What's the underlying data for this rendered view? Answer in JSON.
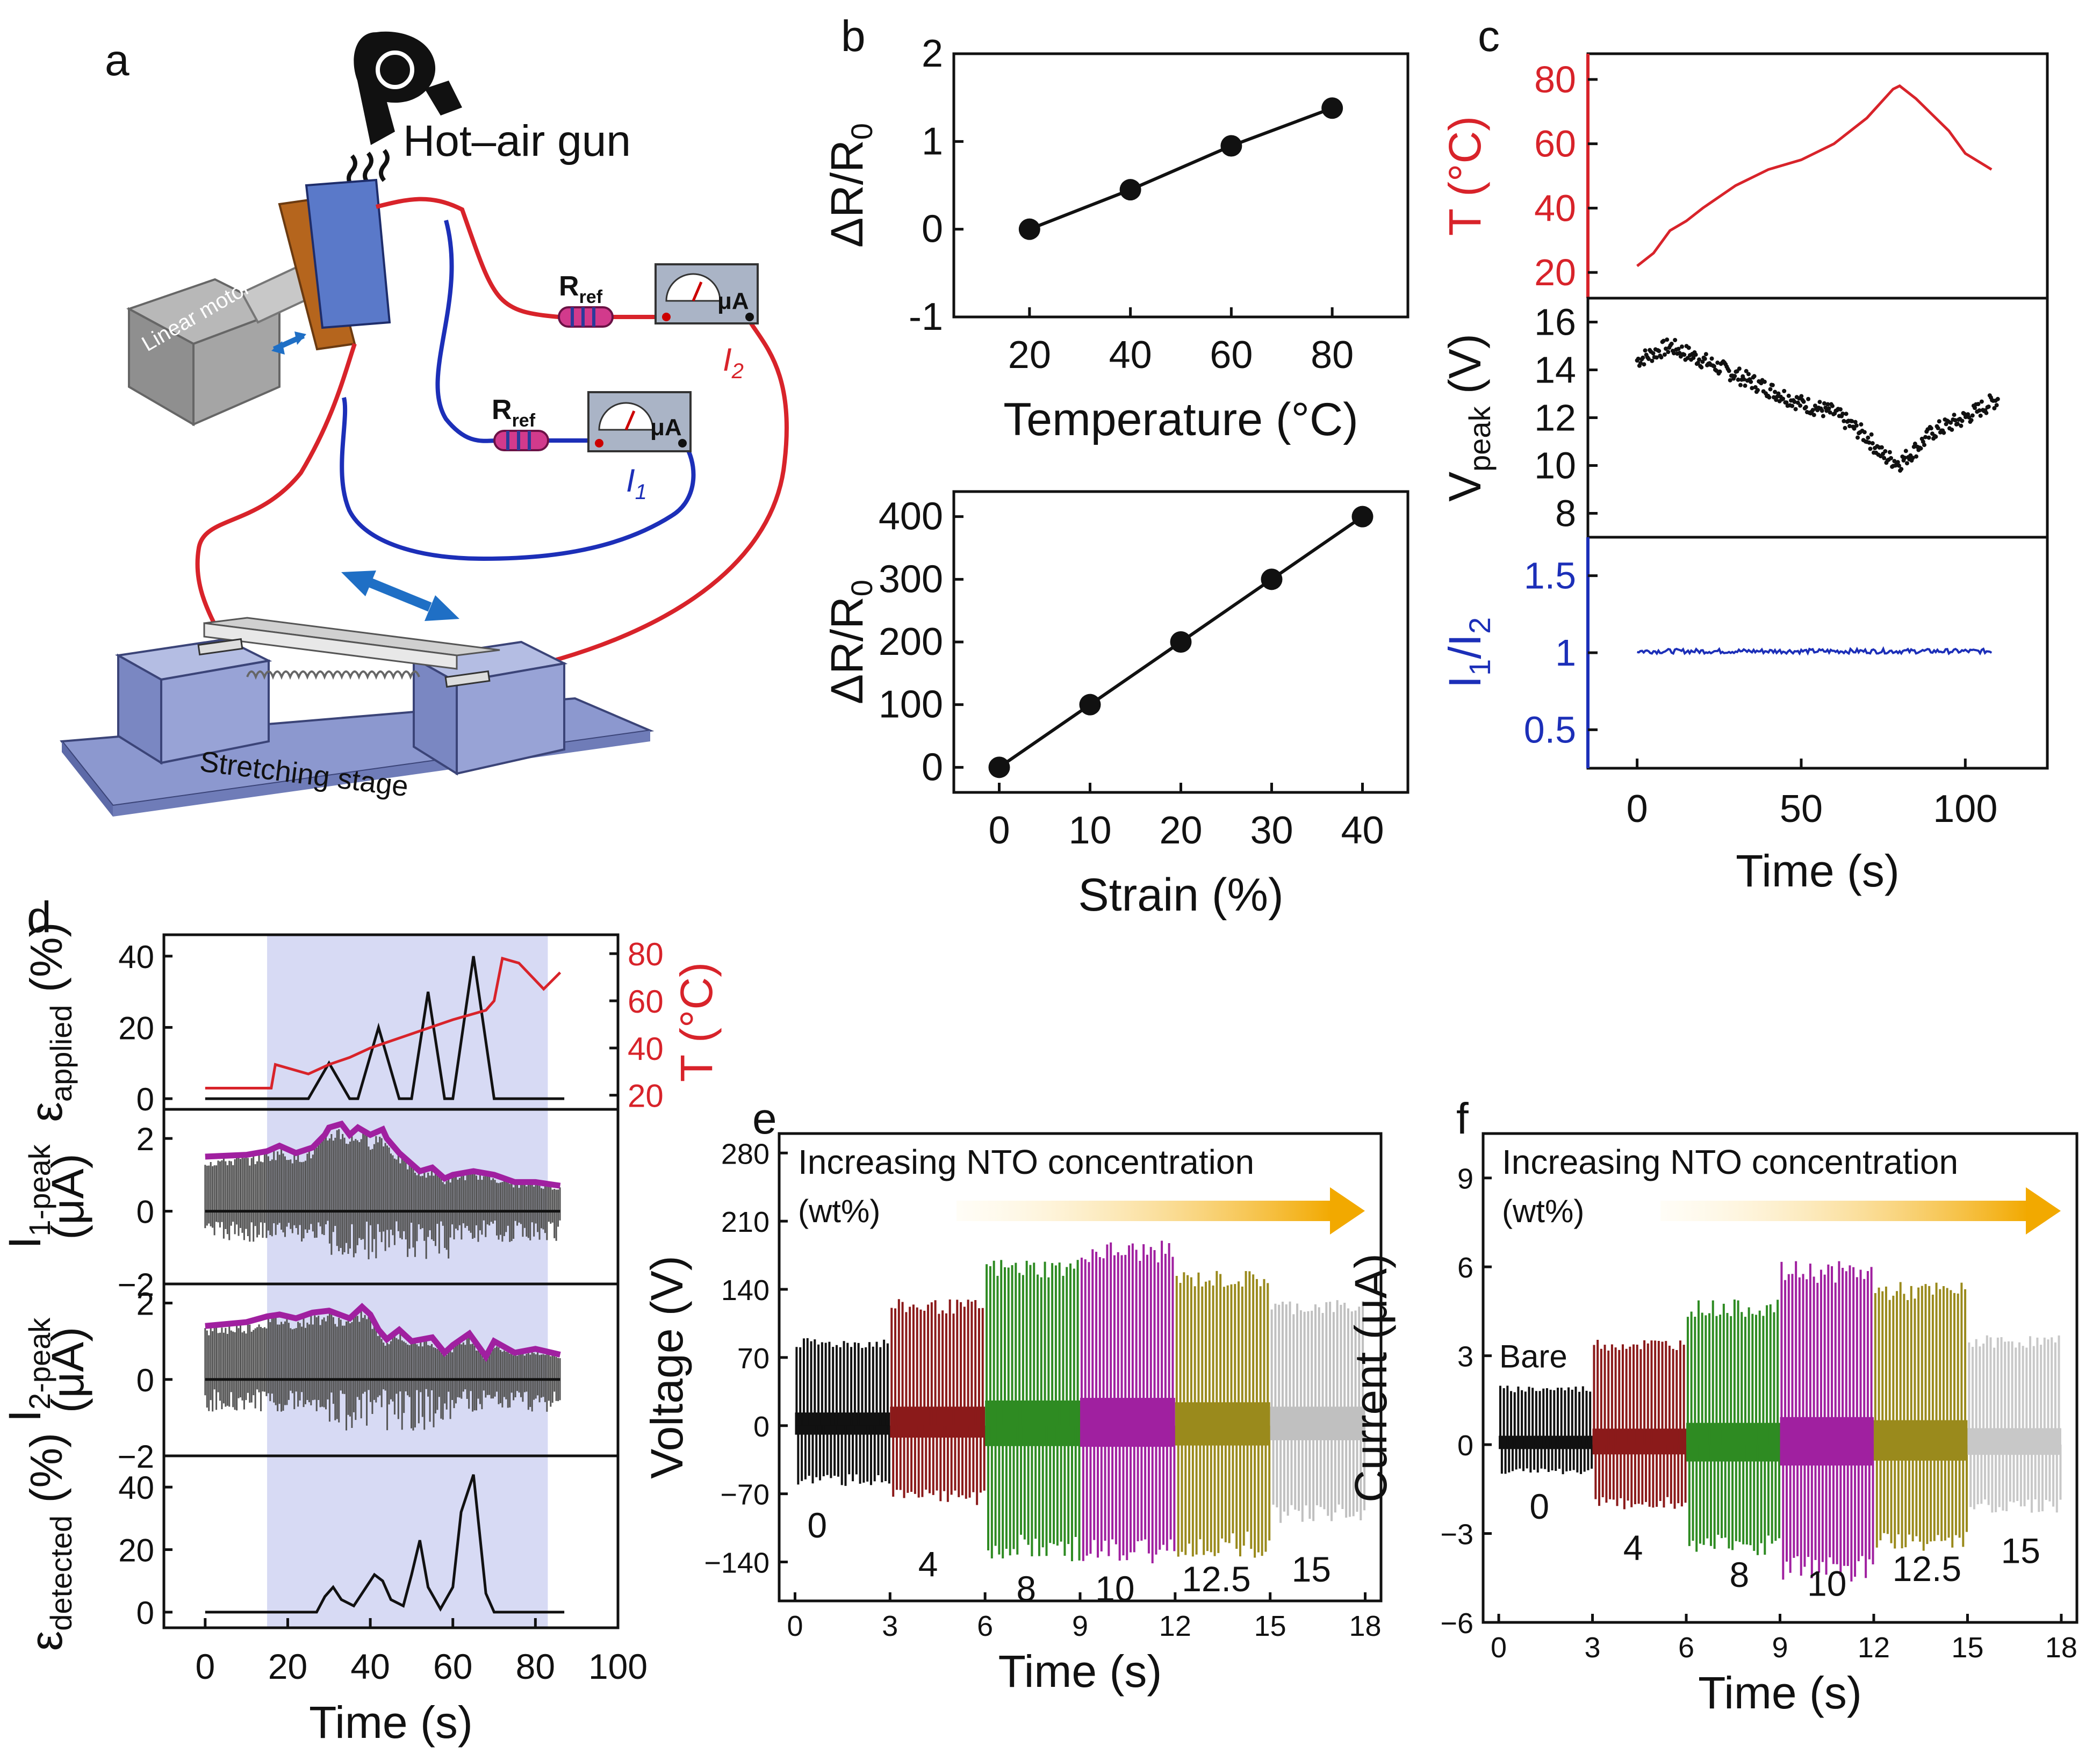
{
  "figure": {
    "panel_letters": [
      "a",
      "b",
      "c",
      "d",
      "e",
      "f"
    ]
  },
  "schematic": {
    "hot_air_gun_label": "Hot–air gun",
    "linear_motor_label": "Linear motor",
    "stage_label": "Stretching stage",
    "rref_label": "R",
    "rref_sub": "ref",
    "meter_label": "μA",
    "i1_label": "I",
    "i1_sub": "1",
    "i2_label": "I",
    "i2_sub": "2",
    "colors": {
      "red_wire": "#d8232a",
      "blue_wire": "#1c2fb8",
      "stage": "#8c98cf",
      "electrode": "#b5651d"
    }
  },
  "chart_data": [
    {
      "id": "b_top",
      "type": "line",
      "markers": true,
      "x": [
        20,
        40,
        60,
        80
      ],
      "y": [
        0.0,
        0.45,
        0.95,
        1.38
      ],
      "xlim": [
        5,
        95
      ],
      "ylim": [
        -1,
        2
      ],
      "xticks": [
        20,
        40,
        60,
        80
      ],
      "yticks": [
        -1,
        0,
        1,
        2
      ],
      "xlabel": "Temperature (°C)",
      "ylabel": "ΔR/R",
      "ylabel_sub": "0"
    },
    {
      "id": "b_bottom",
      "type": "line",
      "markers": true,
      "x": [
        0,
        10,
        20,
        30,
        40
      ],
      "y": [
        0,
        100,
        200,
        300,
        400
      ],
      "xlim": [
        -5,
        45
      ],
      "ylim": [
        -40,
        440
      ],
      "xticks": [
        0,
        10,
        20,
        30,
        40
      ],
      "yticks": [
        0,
        100,
        200,
        300,
        400
      ],
      "xlabel": "Strain (%)",
      "ylabel": "ΔR/R",
      "ylabel_sub": "0"
    },
    {
      "id": "c",
      "type": "line",
      "xlim": [
        -15,
        125
      ],
      "xticks": [
        0,
        50,
        100
      ],
      "xlabel": "Time (s)",
      "subplots": [
        {
          "name": "T",
          "ylabel": "T (°C)",
          "color": "#d8232a",
          "ylim": [
            12,
            88
          ],
          "yticks": [
            20,
            40,
            60,
            80
          ],
          "x": [
            0,
            5,
            10,
            15,
            20,
            30,
            40,
            50,
            60,
            70,
            78,
            80,
            85,
            90,
            95,
            100,
            108
          ],
          "y": [
            22,
            26,
            33,
            36,
            40,
            47,
            52,
            55,
            60,
            68,
            77,
            78,
            74,
            69,
            64,
            57,
            52
          ]
        },
        {
          "name": "Vpeak",
          "ylabel": "V",
          "ylabel_sub": "peak",
          "ylabel_unit": " (V)",
          "color": "#111111",
          "scatter": true,
          "ylim": [
            7,
            17
          ],
          "yticks": [
            8,
            10,
            12,
            14,
            16
          ],
          "x": [
            0,
            10,
            20,
            30,
            40,
            50,
            60,
            70,
            75,
            80,
            85,
            90,
            100,
            110
          ],
          "y": [
            14.4,
            15.0,
            14.4,
            13.8,
            13.2,
            12.6,
            12.2,
            11.2,
            10.4,
            10.1,
            10.7,
            11.4,
            12.0,
            12.8
          ]
        },
        {
          "name": "I1/I2",
          "ylabel": "I",
          "ylabel_sub1": "1",
          "ylabel_mid": "/I",
          "ylabel_sub2": "2",
          "color": "#1c2fb8",
          "ylim": [
            0.25,
            1.75
          ],
          "yticks": [
            0.5,
            1,
            1.5
          ],
          "yticklabels": [
            "0.5",
            "1",
            "1.5"
          ],
          "x": [
            0,
            108
          ],
          "y": [
            1.01,
            1.01
          ]
        }
      ]
    },
    {
      "id": "d",
      "type": "line",
      "xlim": [
        -10,
        100
      ],
      "xticks": [
        0,
        20,
        40,
        60,
        80,
        100
      ],
      "xlabel": "Time (s)",
      "shade_x": [
        15,
        83
      ],
      "subplots": [
        {
          "name": "strain_applied",
          "ylabel": "ε",
          "ylabel_sub": "applied",
          "ylabel_unit": " (%)",
          "ylim": [
            -3,
            46
          ],
          "yticks": [
            0,
            20,
            40
          ],
          "x": [
            0,
            25,
            30,
            35,
            37,
            42,
            47,
            50,
            54,
            58,
            60,
            65,
            70,
            87
          ],
          "y": [
            0,
            0,
            10,
            0,
            0,
            20,
            0,
            0,
            30,
            0,
            0,
            40,
            0,
            0
          ],
          "right_axis": {
            "ylabel": "T (°C)",
            "color": "#d8232a",
            "ylim": [
              14,
              88
            ],
            "yticks": [
              20,
              40,
              60,
              80
            ],
            "x": [
              0,
              16,
              17,
              25,
              30,
              35,
              40,
              45,
              50,
              55,
              60,
              68,
              70,
              72,
              76,
              82,
              86
            ],
            "y": [
              23,
              23,
              33,
              29,
              33,
              36,
              40,
              43,
              46,
              49,
              52,
              56,
              60,
              78,
              76,
              65,
              72
            ]
          }
        },
        {
          "name": "I1peak",
          "ylabel": "I",
          "ylabel_sub": "1-peak",
          "ylabel_line2": "(μA)",
          "ylim": [
            -2,
            2.8
          ],
          "yticks": [
            -2,
            0,
            2
          ],
          "envelope_color": "#a020a0",
          "envelope_x": [
            0,
            10,
            15,
            18,
            22,
            26,
            29,
            30,
            33,
            35,
            37,
            40,
            43,
            44,
            47,
            49,
            52,
            55,
            58,
            60,
            65,
            70,
            75,
            80,
            86
          ],
          "envelope_y": [
            1.5,
            1.55,
            1.65,
            1.8,
            1.6,
            1.75,
            2.1,
            2.3,
            2.4,
            2.1,
            2.3,
            2.1,
            2.25,
            2.0,
            1.6,
            1.4,
            1.1,
            1.2,
            0.9,
            1.0,
            1.1,
            1.0,
            0.8,
            0.8,
            0.7
          ]
        },
        {
          "name": "I2peak",
          "ylabel": "I",
          "ylabel_sub": "2-peak",
          "ylabel_line2": "(μA)",
          "ylim": [
            -2,
            2.5
          ],
          "yticks": [
            -2,
            0,
            2
          ],
          "envelope_color": "#a020a0",
          "envelope_x": [
            0,
            10,
            15,
            18,
            22,
            26,
            30,
            35,
            38,
            40,
            42,
            44,
            47,
            50,
            55,
            58,
            60,
            64,
            68,
            70,
            75,
            80,
            86
          ],
          "envelope_y": [
            1.4,
            1.5,
            1.65,
            1.7,
            1.6,
            1.75,
            1.8,
            1.6,
            1.9,
            1.7,
            1.3,
            1.05,
            1.3,
            1.0,
            1.1,
            0.7,
            0.9,
            1.2,
            0.6,
            1.0,
            0.7,
            0.8,
            0.65
          ]
        },
        {
          "name": "strain_detected",
          "ylabel": "ε",
          "ylabel_sub": "detected",
          "ylabel_unit": " (%)",
          "ylim": [
            -5,
            50
          ],
          "yticks": [
            0,
            20,
            40
          ],
          "x": [
            0,
            27,
            29,
            31,
            33,
            36,
            38,
            41,
            43,
            45,
            48,
            50,
            52,
            54,
            57,
            60,
            62,
            65,
            68,
            70,
            87
          ],
          "y": [
            0,
            0,
            5,
            8,
            4,
            2,
            6,
            12,
            10,
            4,
            2,
            12,
            23,
            8,
            1,
            8,
            32,
            44,
            6,
            0,
            0
          ]
        }
      ]
    },
    {
      "id": "e",
      "type": "line",
      "xlim": [
        -0.5,
        18.5
      ],
      "xticks": [
        0,
        3,
        6,
        9,
        12,
        15,
        18
      ],
      "xlabel": "Time (s)",
      "ylim": [
        -180,
        300
      ],
      "yticks": [
        -140,
        -70,
        0,
        70,
        140,
        210,
        280
      ],
      "yticklabels": [
        "−140",
        "−70",
        "0",
        "70",
        "140",
        "210",
        "280"
      ],
      "ylabel": "Voltage (V)",
      "annotation": "Increasing NTO concentration",
      "annotation_line2": "(wt%)",
      "series": [
        {
          "name": "0",
          "color": "#111111",
          "pos": 90,
          "neg": -62
        },
        {
          "name": "4",
          "color": "#8b1a1a",
          "pos": 130,
          "neg": -82
        },
        {
          "name": "8",
          "color": "#2e8b22",
          "pos": 172,
          "neg": -140
        },
        {
          "name": "10",
          "color": "#a020a0",
          "pos": 190,
          "neg": -145
        },
        {
          "name": "12.5",
          "color": "#9a8a1c",
          "pos": 160,
          "neg": -136
        },
        {
          "name": "15",
          "color": "#c0c0c0",
          "pos": 130,
          "neg": -100
        }
      ]
    },
    {
      "id": "f",
      "type": "line",
      "xlim": [
        -0.5,
        18.5
      ],
      "xticks": [
        0,
        3,
        6,
        9,
        12,
        15,
        18
      ],
      "xlabel": "Time (s)",
      "ylim": [
        -6,
        10.5
      ],
      "yticks": [
        -6,
        -3,
        0,
        3,
        6,
        9
      ],
      "yticklabels": [
        "−6",
        "−3",
        "0",
        "3",
        "6",
        "9"
      ],
      "ylabel": "Current (μA)",
      "annotation": "Increasing NTO concentration",
      "annotation_line2": "(wt%)",
      "inner_label": "Bare",
      "series": [
        {
          "name": "0",
          "color": "#111111",
          "pos": 2.0,
          "neg": -1.0
        },
        {
          "name": "4",
          "color": "#8b1a1a",
          "pos": 3.6,
          "neg": -2.2
        },
        {
          "name": "8",
          "color": "#2e8b22",
          "pos": 4.9,
          "neg": -3.8
        },
        {
          "name": "10",
          "color": "#a020a0",
          "pos": 6.2,
          "neg": -4.7
        },
        {
          "name": "12.5",
          "color": "#9a8a1c",
          "pos": 5.5,
          "neg": -3.6
        },
        {
          "name": "15",
          "color": "#c8c8c8",
          "pos": 3.7,
          "neg": -2.3
        }
      ]
    }
  ]
}
